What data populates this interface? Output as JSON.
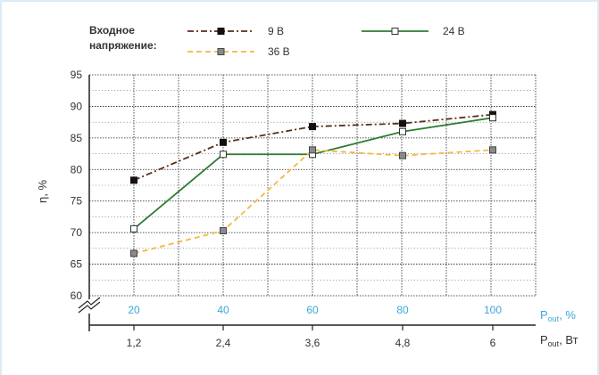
{
  "chart_data": {
    "type": "line",
    "legend_title": "Входное напряжение:",
    "legend_position": "top",
    "ylabel": "η, %",
    "ylim": [
      60,
      95
    ],
    "yticks": [
      60,
      65,
      70,
      75,
      80,
      85,
      90,
      95
    ],
    "x": [
      1.2,
      2.4,
      3.6,
      4.8,
      6
    ],
    "x_tick_labels": [
      "1,2",
      "2,4",
      "3,6",
      "4,8",
      "6"
    ],
    "x_pct_tick_labels": [
      "20",
      "40",
      "60",
      "80",
      "100"
    ],
    "xlabel_pct": {
      "main": "P",
      "sub": "out",
      "suffix": ", %"
    },
    "xlabel_power": {
      "main": "P",
      "sub": "out",
      "suffix": ", Вт"
    },
    "grid": true,
    "y_axis_break": true,
    "series": [
      {
        "name": "9 В",
        "values": [
          78.3,
          84.3,
          86.8,
          87.3,
          88.7
        ],
        "color": "#5a2d1a",
        "marker": "filled-square",
        "line_style": "dash-dot"
      },
      {
        "name": "24 В",
        "values": [
          70.6,
          82.4,
          82.4,
          86.0,
          88.2
        ],
        "color": "#2e7d32",
        "marker": "hollow-square",
        "line_style": "solid"
      },
      {
        "name": "36 В",
        "values": [
          66.7,
          70.3,
          83.1,
          82.2,
          83.1
        ],
        "color": "#f5b740",
        "marker": "gray-square",
        "line_style": "dashed"
      }
    ]
  }
}
